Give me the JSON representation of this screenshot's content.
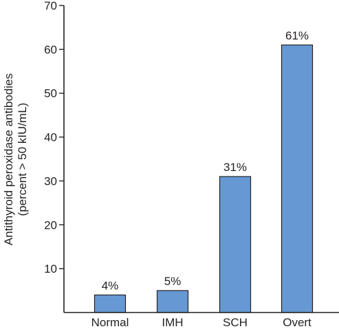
{
  "chart_data": {
    "type": "bar",
    "categories": [
      "Normal",
      "IMH",
      "SCH",
      "Overt"
    ],
    "values": [
      4,
      5,
      31,
      61
    ],
    "data_labels": [
      "4%",
      "5%",
      "31%",
      "61%"
    ],
    "title": "",
    "xlabel": "",
    "ylabel_lines": [
      "Antithyroid peroxidase antibodies",
      "(percent > 50 kIU/mL)"
    ],
    "ylim": [
      0,
      70
    ],
    "yticks": [
      10,
      20,
      30,
      40,
      50,
      60,
      70
    ],
    "grid": false,
    "legend": "none",
    "bar_color": "#6699d4",
    "bar_stroke": "#231f20",
    "axis_color": "#231f20"
  }
}
